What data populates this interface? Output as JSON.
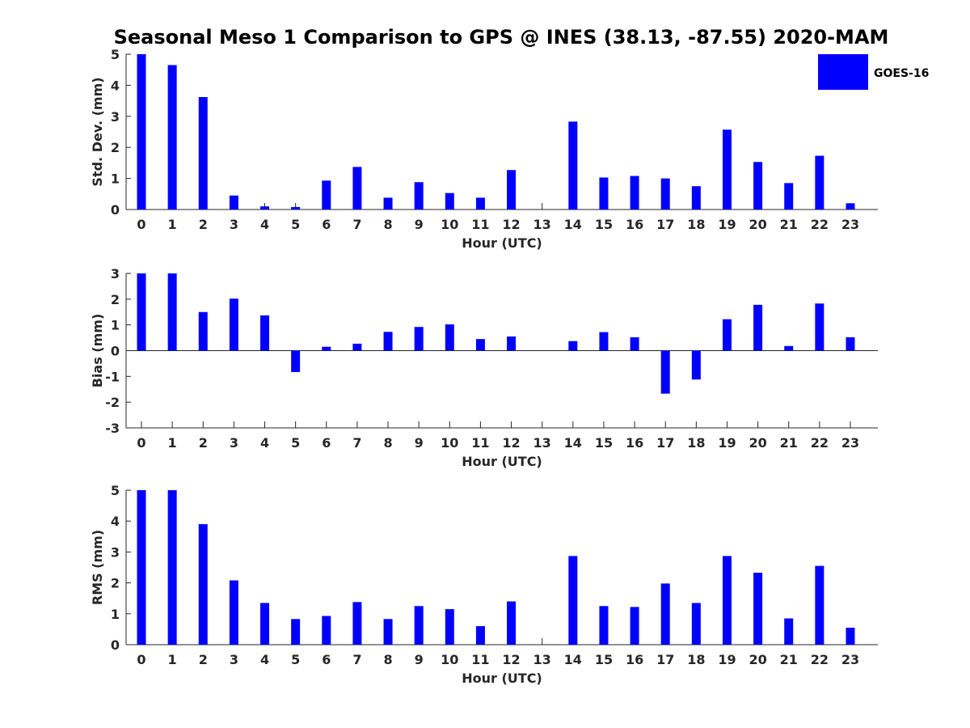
{
  "title": "Seasonal Meso 1 Comparison to GPS @ INES (38.13, -87.55) 2020-MAM",
  "legend": {
    "label": "GOES-16",
    "color": "#0000ff",
    "placement": "top-right"
  },
  "chart_data": [
    {
      "type": "bar",
      "categories": [
        "0",
        "1",
        "2",
        "3",
        "4",
        "5",
        "6",
        "7",
        "8",
        "9",
        "10",
        "11",
        "12",
        "13",
        "14",
        "15",
        "16",
        "17",
        "18",
        "19",
        "20",
        "21",
        "22",
        "23"
      ],
      "series": [
        {
          "name": "GOES-16",
          "values": [
            5.0,
            4.65,
            3.62,
            0.45,
            0.1,
            0.08,
            0.93,
            1.37,
            0.38,
            0.88,
            0.53,
            0.38,
            1.27,
            0,
            2.83,
            1.03,
            1.08,
            1.0,
            0.75,
            2.57,
            1.53,
            0.85,
            1.73,
            0.2
          ]
        }
      ],
      "xlabel": "Hour (UTC)",
      "ylabel": "Std. Dev. (mm)",
      "ylim": [
        0,
        5
      ],
      "yticks": [
        "0",
        "1",
        "2",
        "3",
        "4",
        "5"
      ],
      "grid": false
    },
    {
      "type": "bar",
      "categories": [
        "0",
        "1",
        "2",
        "3",
        "4",
        "5",
        "6",
        "7",
        "8",
        "9",
        "10",
        "11",
        "12",
        "13",
        "14",
        "15",
        "16",
        "17",
        "18",
        "19",
        "20",
        "21",
        "22",
        "23"
      ],
      "series": [
        {
          "name": "GOES-16",
          "values": [
            3.0,
            3.0,
            1.5,
            2.02,
            1.37,
            -0.83,
            0.15,
            0.27,
            0.73,
            0.92,
            1.02,
            0.45,
            0.55,
            0,
            0.37,
            0.72,
            0.52,
            -1.67,
            -1.12,
            1.22,
            1.78,
            0.18,
            1.83,
            0.52
          ]
        }
      ],
      "xlabel": "Hour (UTC)",
      "ylabel": "Bias (mm)",
      "ylim": [
        -3,
        3
      ],
      "yticks": [
        "-3",
        "-2",
        "-1",
        "0",
        "1",
        "2",
        "3"
      ],
      "grid": false
    },
    {
      "type": "bar",
      "categories": [
        "0",
        "1",
        "2",
        "3",
        "4",
        "5",
        "6",
        "7",
        "8",
        "9",
        "10",
        "11",
        "12",
        "13",
        "14",
        "15",
        "16",
        "17",
        "18",
        "19",
        "20",
        "21",
        "22",
        "23"
      ],
      "series": [
        {
          "name": "GOES-16",
          "values": [
            5.0,
            5.0,
            3.9,
            2.08,
            1.35,
            0.83,
            0.93,
            1.38,
            0.83,
            1.25,
            1.15,
            0.6,
            1.4,
            0,
            2.87,
            1.25,
            1.22,
            1.98,
            1.35,
            2.87,
            2.33,
            0.85,
            2.55,
            0.55
          ]
        }
      ],
      "xlabel": "Hour (UTC)",
      "ylabel": "RMS (mm)",
      "ylim": [
        0,
        5
      ],
      "yticks": [
        "0",
        "1",
        "2",
        "3",
        "4",
        "5"
      ],
      "grid": false
    }
  ]
}
